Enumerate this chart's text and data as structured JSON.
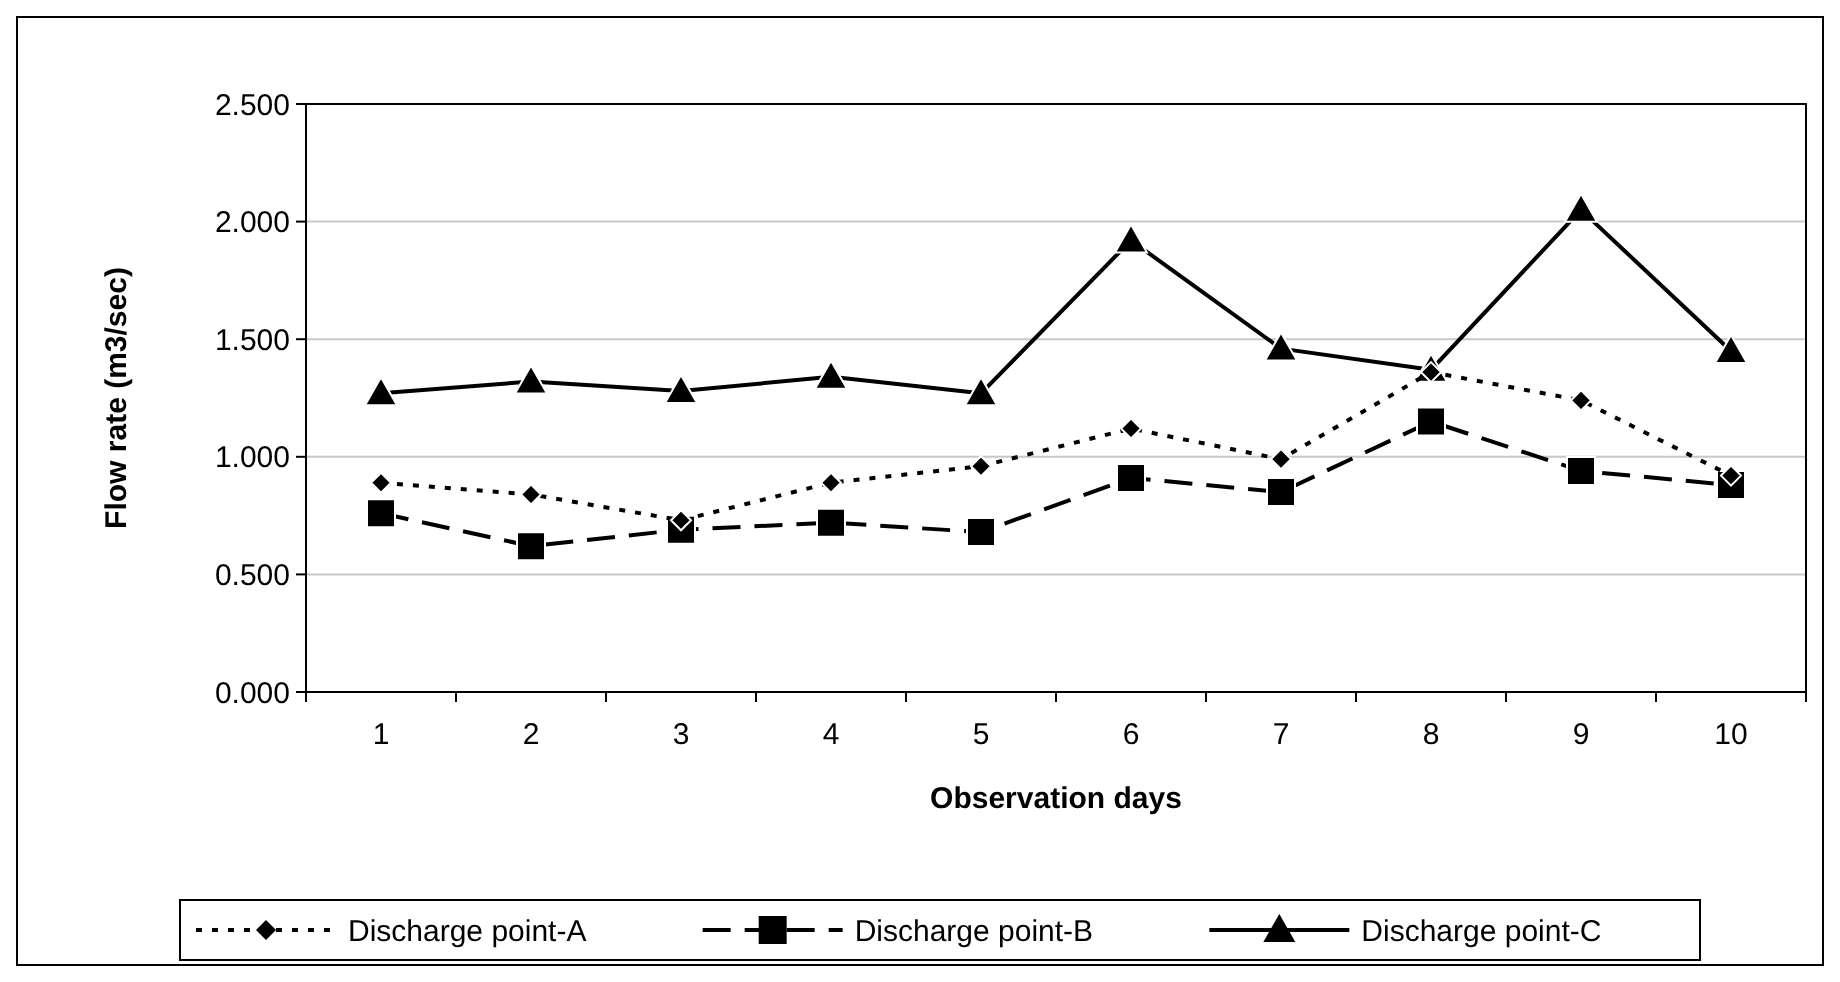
{
  "chart_data": {
    "type": "line",
    "xlabel": "Observation days",
    "ylabel": "Flow rate (m3/sec)",
    "categories": [
      "1",
      "2",
      "3",
      "4",
      "5",
      "6",
      "7",
      "8",
      "9",
      "10"
    ],
    "series": [
      {
        "name": "Discharge point-A",
        "color": "#000000",
        "marker": "diamond",
        "line_style": "dotted",
        "values": [
          0.89,
          0.84,
          0.73,
          0.89,
          0.96,
          1.12,
          0.99,
          1.36,
          1.24,
          0.92
        ]
      },
      {
        "name": "Discharge point-B",
        "color": "#000000",
        "marker": "square",
        "line_style": "dashed",
        "values": [
          0.76,
          0.62,
          0.69,
          0.72,
          0.68,
          0.91,
          0.85,
          1.15,
          0.94,
          0.88
        ]
      },
      {
        "name": "Discharge point-C",
        "color": "#000000",
        "marker": "triangle",
        "line_style": "solid",
        "values": [
          1.27,
          1.32,
          1.28,
          1.34,
          1.27,
          1.92,
          1.46,
          1.37,
          2.05,
          1.45
        ]
      }
    ],
    "ylim": [
      0,
      2.5
    ],
    "yticks": [
      {
        "value": 0,
        "label": "0.000"
      },
      {
        "value": 0.5,
        "label": "0.500"
      },
      {
        "value": 1,
        "label": "1.000"
      },
      {
        "value": 1.5,
        "label": "1.500"
      },
      {
        "value": 2,
        "label": "2.000"
      },
      {
        "value": 2.5,
        "label": "2.500"
      }
    ],
    "grid": "y",
    "legend": "bottom"
  }
}
